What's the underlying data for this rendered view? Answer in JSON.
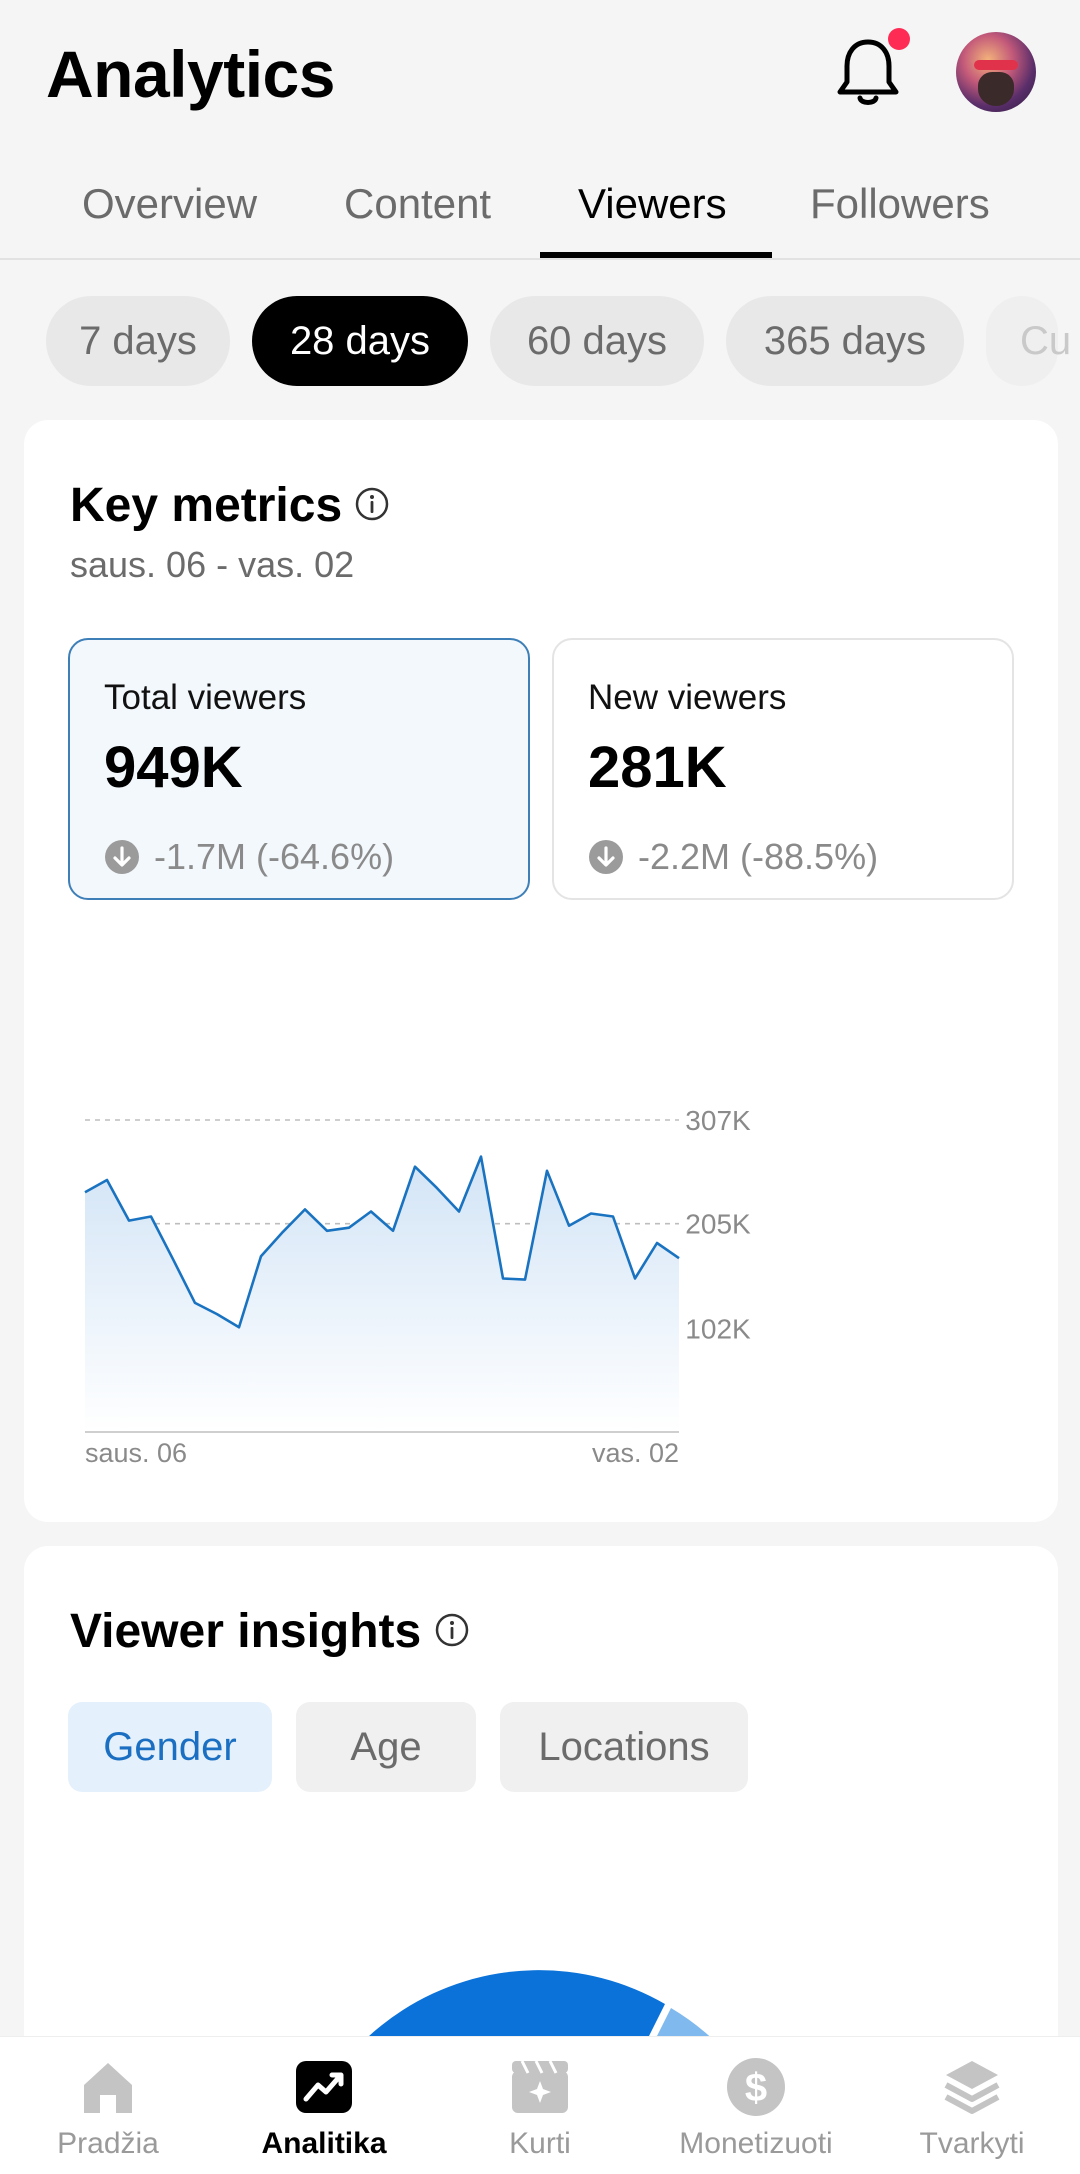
{
  "header": {
    "title": "Analytics"
  },
  "tabs": [
    {
      "label": "Overview"
    },
    {
      "label": "Content"
    },
    {
      "label": "Viewers"
    },
    {
      "label": "Followers"
    }
  ],
  "active_tab": "Viewers",
  "ranges": [
    {
      "label": "7 days"
    },
    {
      "label": "28 days"
    },
    {
      "label": "60 days"
    },
    {
      "label": "365 days"
    },
    {
      "label": "Cu"
    }
  ],
  "active_range": "28 days",
  "key_metrics": {
    "title": "Key metrics",
    "date_range": "saus. 06 - vas. 02",
    "total": {
      "label": "Total viewers",
      "value": "949K",
      "change": "-1.7M (-64.6%)"
    },
    "new": {
      "label": "New viewers",
      "value": "281K",
      "change": "-2.2M (-88.5%)"
    }
  },
  "chart_data": {
    "type": "area",
    "series": [
      {
        "values": [
          236,
          248,
          208,
          212,
          170,
          127,
          116,
          103,
          173,
          197,
          219,
          198,
          201,
          217,
          198,
          261,
          240,
          217,
          271,
          151,
          150,
          257,
          203,
          215,
          212,
          151,
          186,
          171
        ]
      }
    ],
    "xlabels": [
      "saus. 06",
      "vas. 02"
    ],
    "yticks": [
      {
        "value": 307,
        "label": "307K"
      },
      {
        "value": 205,
        "label": "205K"
      },
      {
        "value": 102,
        "label": "102K"
      }
    ],
    "ylim": [
      0,
      307
    ],
    "grid": true,
    "colors": {
      "line": "#1a73c0",
      "fill_top": "#d2e4f6",
      "fill_bottom": "#ffffff"
    }
  },
  "insights": {
    "title": "Viewer insights",
    "chips": [
      {
        "label": "Gender"
      },
      {
        "label": "Age"
      },
      {
        "label": "Locations"
      }
    ],
    "active_chip": "Gender",
    "donut": {
      "colors": [
        "#0b72d9",
        "#7fb9ee"
      ]
    }
  },
  "nav": [
    {
      "label": "Pradžia",
      "icon": "home-icon"
    },
    {
      "label": "Analitika",
      "icon": "analytics-icon"
    },
    {
      "label": "Kurti",
      "icon": "create-icon"
    },
    {
      "label": "Monetizuoti",
      "icon": "dollar-icon"
    },
    {
      "label": "Tvarkyti",
      "icon": "layers-icon"
    }
  ],
  "active_nav": "Analitika",
  "colors": {
    "accent": "#1a6fc2",
    "notification": "#fe2c55"
  }
}
